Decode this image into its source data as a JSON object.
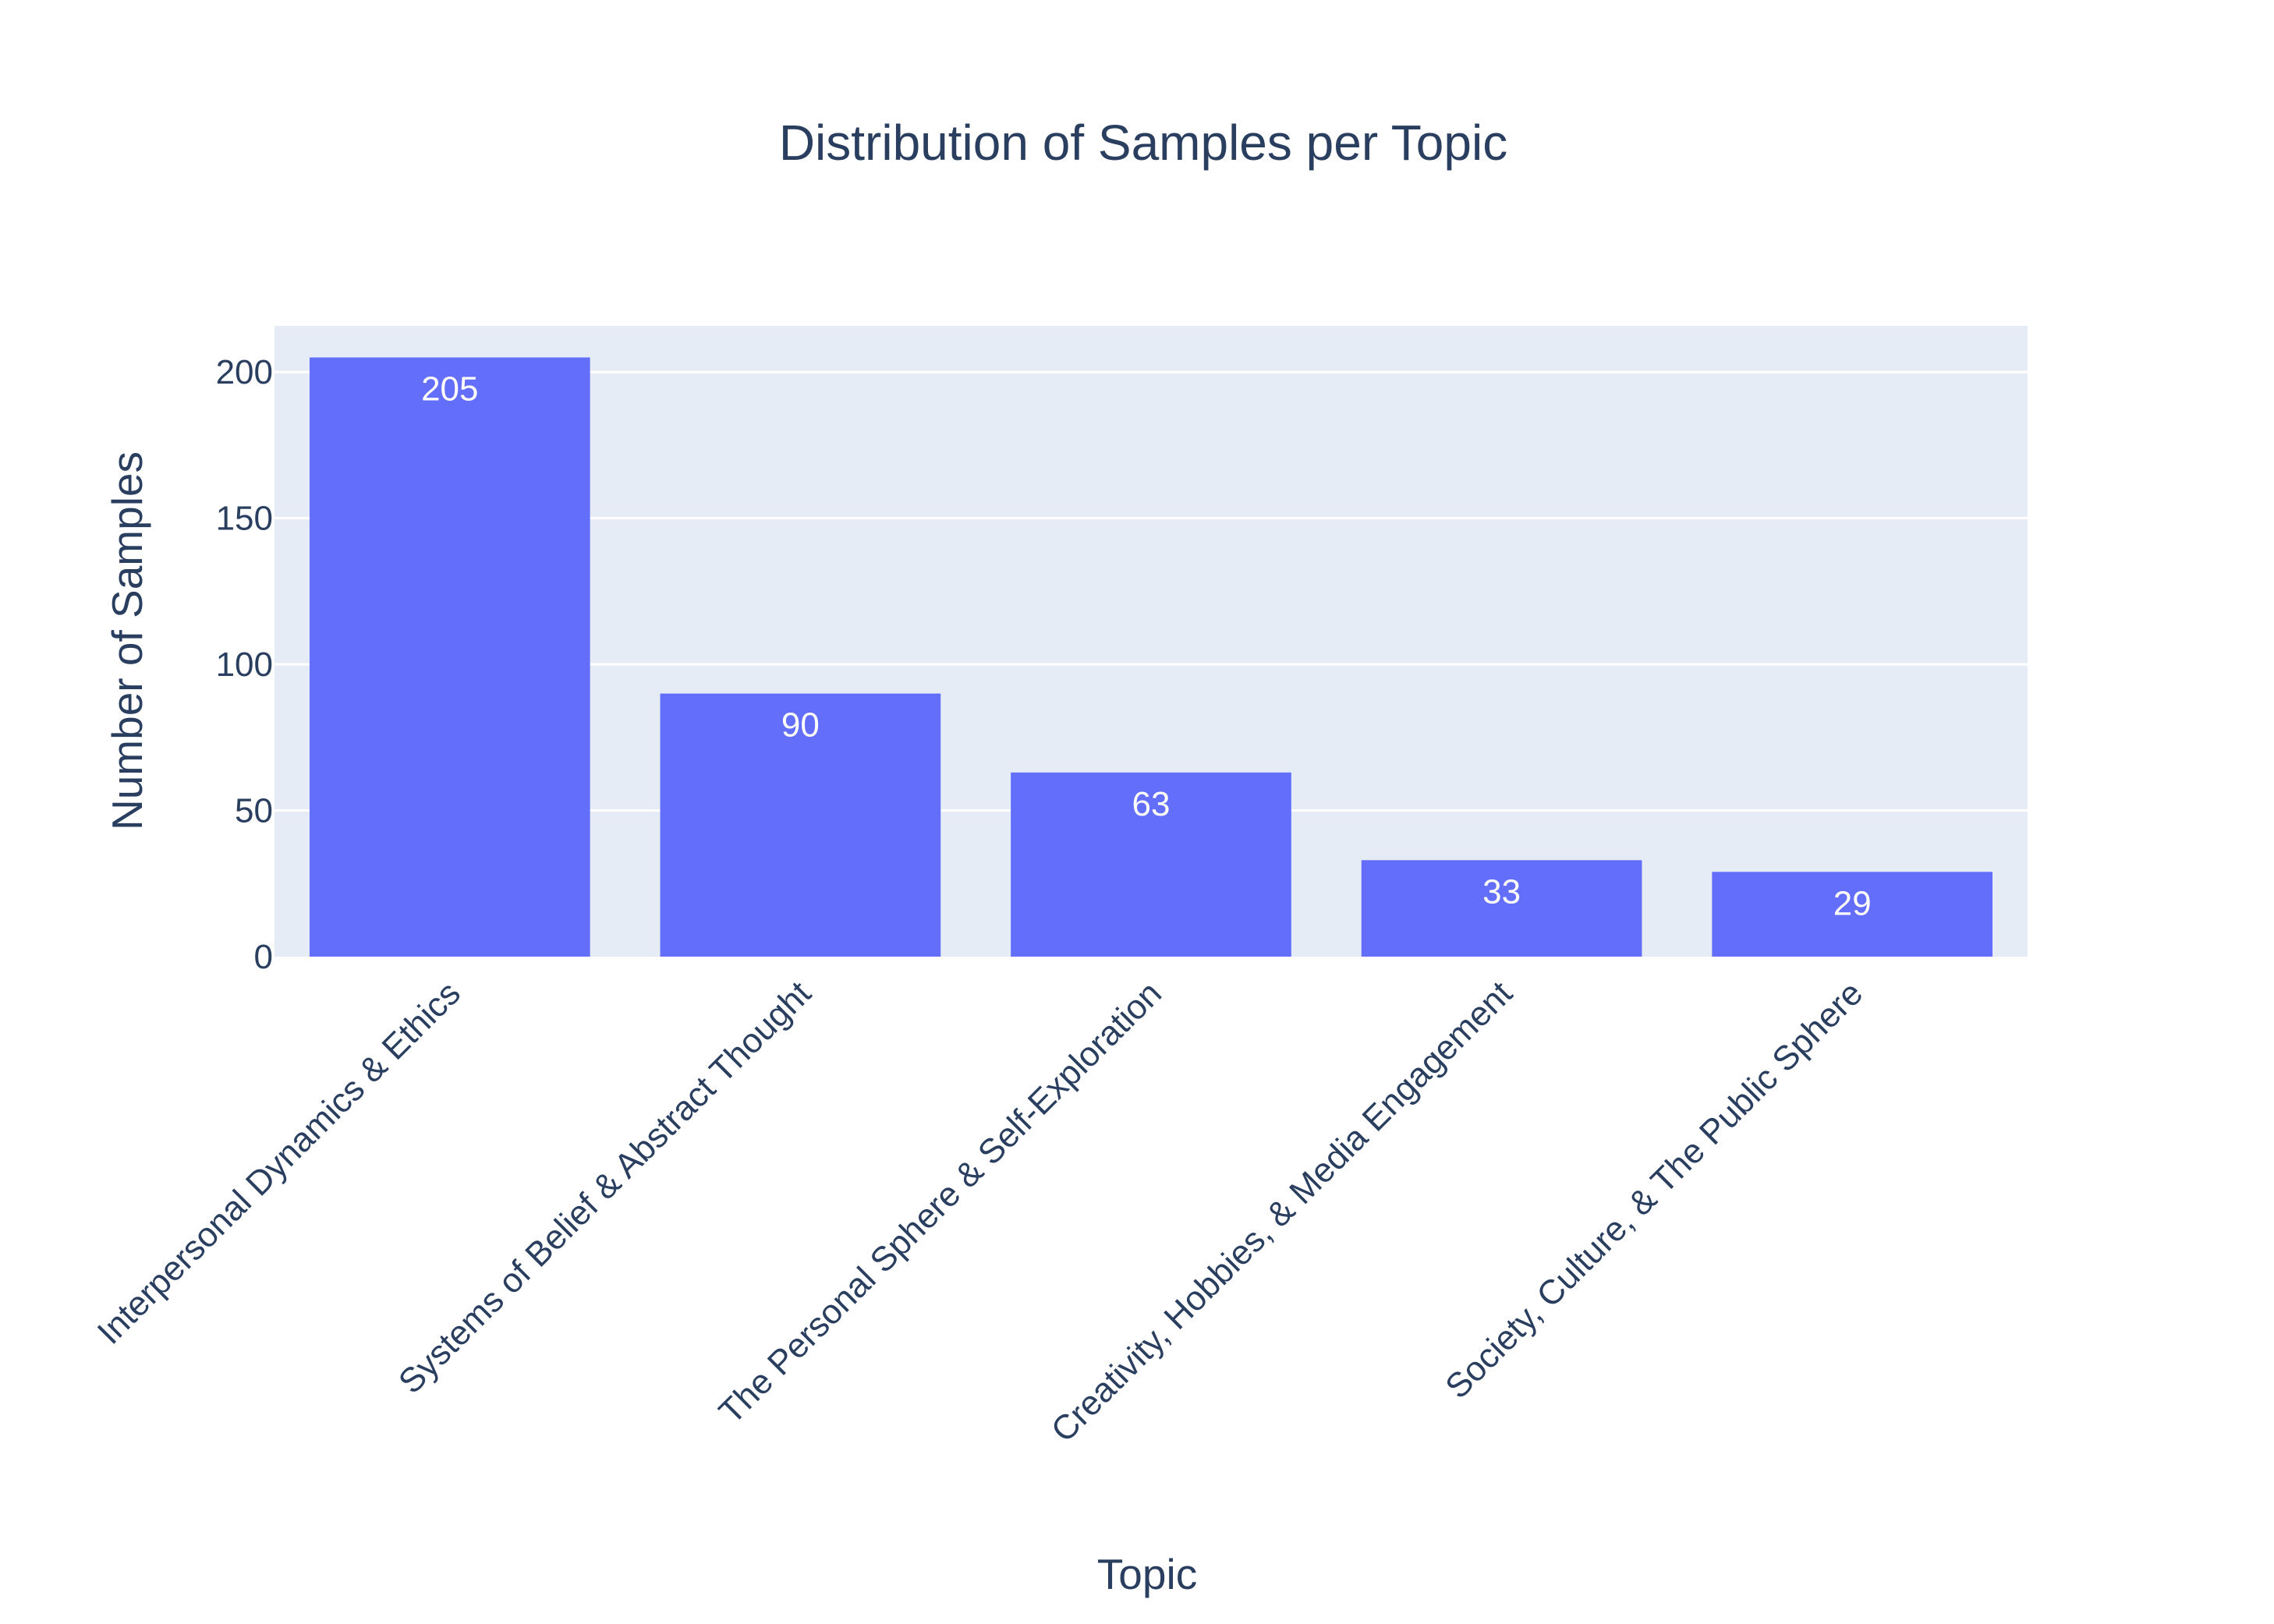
{
  "chart_data": {
    "type": "bar",
    "title": "Distribution of Samples per Topic",
    "xlabel": "Topic",
    "ylabel": "Number of Samples",
    "categories": [
      "Interpersonal Dynamics & Ethics",
      "Systems of Belief & Abstract Thought",
      "The Personal Sphere & Self-Exploration",
      "Creativity, Hobbies, & Media Engagement",
      "Society, Culture, & The Public Sphere"
    ],
    "values": [
      205,
      90,
      63,
      33,
      29
    ],
    "data_labels": [
      "205",
      "90",
      "63",
      "33",
      "29"
    ],
    "ylim": [
      0,
      215.8
    ],
    "yticks": [
      0,
      50,
      100,
      150,
      200
    ],
    "ytick_labels": [
      "0",
      "50",
      "100",
      "150",
      "200"
    ],
    "x_tick_rotation_deg": -45,
    "grid": true,
    "legend": false,
    "colors": {
      "bar": "#636efa",
      "plot_background": "#e5ecf6",
      "gridline": "#ffffff",
      "text": "#2a3f5f",
      "bar_label": "#ffffff"
    }
  }
}
